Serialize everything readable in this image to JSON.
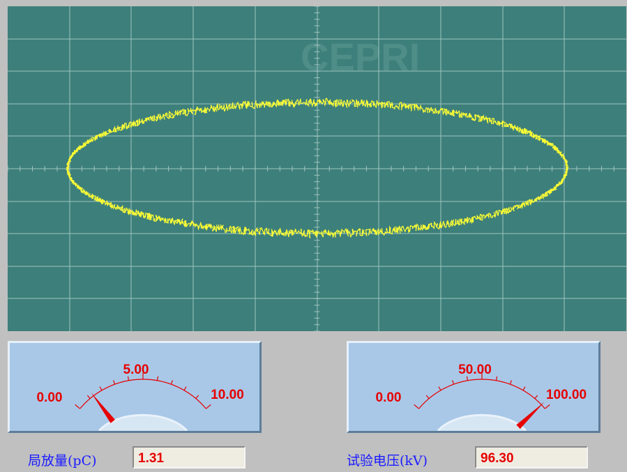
{
  "scope": {
    "watermark": "CEPRI",
    "trace_color": "#ffff33",
    "background_color": "#3d7f7a",
    "grid_color": "#9fc4c0"
  },
  "gauges": [
    {
      "id": "partial-discharge",
      "scale_min": "0.00",
      "scale_mid": "5.00",
      "scale_max": "10.00",
      "min": 0,
      "max": 10,
      "needle_value": 1.31,
      "label": "局放量(pC)",
      "value_text": "1.31"
    },
    {
      "id": "test-voltage",
      "scale_min": "0.00",
      "scale_mid": "50.00",
      "scale_max": "100.00",
      "min": 0,
      "max": 100,
      "needle_value": 96.3,
      "label": "试验电压(kV)",
      "value_text": "96.30"
    }
  ],
  "colors": {
    "gauge_face": "#a9c8e8",
    "scale_text": "#e60000",
    "label_text": "#1a1aff"
  }
}
